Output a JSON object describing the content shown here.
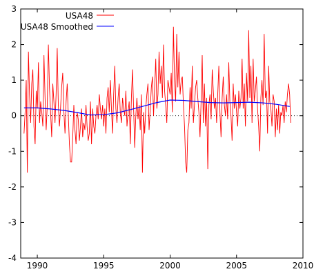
{
  "chart_data": {
    "type": "line",
    "x_ticks": [
      1990,
      1995,
      2000,
      2005,
      2010
    ],
    "y_ticks": [
      -4,
      -3,
      -2,
      -1,
      0,
      1,
      2,
      3
    ],
    "xlim": [
      1988.75,
      2010
    ],
    "ylim": [
      -4,
      3
    ],
    "grid": false,
    "zero_line": true,
    "legend": "top-left",
    "series": [
      {
        "name": "USA48",
        "color": "#ff0000",
        "start_year": 1989.0,
        "step_years": 0.08333,
        "values": [
          -0.5,
          0.1,
          1.0,
          -1.6,
          1.8,
          0.6,
          -0.2,
          0.9,
          1.3,
          -0.3,
          -0.8,
          0.7,
          0.2,
          1.5,
          -0.2,
          0.4,
          0.1,
          -0.3,
          1.7,
          0.5,
          -0.4,
          0.3,
          2.0,
          0.8,
          0.1,
          -0.6,
          0.9,
          0.4,
          -0.2,
          0.6,
          1.9,
          0.3,
          -0.3,
          0.2,
          0.8,
          1.2,
          0.1,
          -0.5,
          0.4,
          0.9,
          0.0,
          -0.8,
          -1.3,
          -1.3,
          -0.6,
          0.3,
          -0.4,
          -0.8,
          0.1,
          -0.1,
          -0.7,
          -0.3,
          0.2,
          -0.6,
          -0.2,
          -0.4,
          0.3,
          -0.3,
          -0.7,
          -0.5,
          0.4,
          -0.8,
          0.2,
          -0.3,
          -0.5,
          0.0,
          0.3,
          -0.1,
          0.6,
          0.2,
          -0.1,
          0.3,
          -0.3,
          0.2,
          -0.5,
          0.5,
          0.8,
          0.1,
          1.0,
          0.2,
          -0.5,
          0.6,
          1.4,
          0.2,
          -0.2,
          0.5,
          0.9,
          0.1,
          -0.2,
          0.5,
          0.2,
          0.0,
          0.7,
          -0.3,
          0.1,
          0.4,
          -0.8,
          0.5,
          1.3,
          0.2,
          -0.9,
          0.0,
          0.5,
          -0.1,
          0.3,
          -0.4,
          0.6,
          -1.6,
          0.1,
          -0.5,
          0.2,
          0.6,
          0.9,
          -0.4,
          0.2,
          0.8,
          1.1,
          0.0,
          0.8,
          1.6,
          0.2,
          0.6,
          1.8,
          0.9,
          1.4,
          0.5,
          2.0,
          0.7,
          0.3,
          -0.2,
          1.0,
          0.8,
          0.6,
          1.2,
          0.1,
          2.5,
          1.0,
          0.4,
          2.3,
          0.8,
          1.8,
          0.6,
          1.0,
          1.1,
          0.3,
          -0.3,
          -1.3,
          -1.6,
          -0.4,
          -0.2,
          0.8,
          0.2,
          1.4,
          -0.2,
          0.3,
          0.8,
          1.0,
          0.5,
          0.1,
          -0.6,
          0.4,
          1.7,
          -0.2,
          0.9,
          -0.3,
          0.5,
          -1.5,
          0.3,
          0.6,
          -0.1,
          1.3,
          0.7,
          0.2,
          0.5,
          -0.2,
          0.6,
          1.4,
          0.1,
          -0.6,
          0.5,
          1.1,
          0.3,
          0.0,
          0.6,
          -0.1,
          1.5,
          0.4,
          0.0,
          -0.7,
          0.9,
          0.2,
          0.6,
          0.1,
          -0.3,
          0.7,
          0.2,
          0.5,
          1.6,
          0.2,
          0.9,
          -0.3,
          1.2,
          0.4,
          2.4,
          0.5,
          1.4,
          -0.2,
          1.6,
          0.4,
          0.7,
          1.1,
          0.2,
          -0.3,
          -1.0,
          0.5,
          1.0,
          0.3,
          2.3,
          0.5,
          0.7,
          -0.5,
          1.4,
          0.4,
          0.2,
          -0.3,
          0.6,
          0.4,
          -0.6,
          0.2,
          -0.4,
          0.3,
          -0.5,
          0.1,
          0.0,
          0.3,
          -0.2,
          0.4,
          0.1,
          0.6,
          0.9,
          0.6,
          -0.2
        ]
      },
      {
        "name": "USA48 Smoothed",
        "color": "#0000ff",
        "x": [
          1989.0,
          1990.0,
          1991.0,
          1992.0,
          1993.0,
          1994.0,
          1995.0,
          1996.0,
          1997.0,
          1998.0,
          1999.0,
          2000.0,
          2001.0,
          2002.0,
          2003.0,
          2004.0,
          2005.0,
          2006.0,
          2007.0,
          2008.0,
          2009.0
        ],
        "values": [
          0.22,
          0.22,
          0.19,
          0.15,
          0.09,
          0.02,
          0.03,
          0.08,
          0.17,
          0.27,
          0.37,
          0.44,
          0.43,
          0.4,
          0.37,
          0.36,
          0.37,
          0.38,
          0.36,
          0.32,
          0.26
        ]
      }
    ]
  }
}
